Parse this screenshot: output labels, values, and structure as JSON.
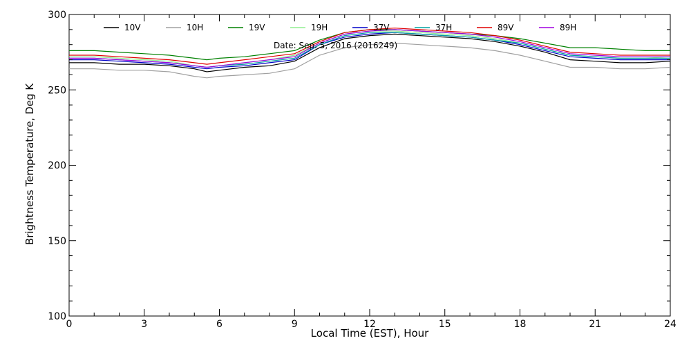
{
  "chart_data": {
    "type": "line",
    "title": "",
    "annotation": "Date: Sep. 5, 2016 (2016249)",
    "xlabel": "Local Time (EST), Hour",
    "ylabel": "Brightness Temperature, Deg K",
    "xlim": [
      0,
      24
    ],
    "ylim": [
      100,
      300
    ],
    "xticks": [
      0,
      3,
      6,
      9,
      12,
      15,
      18,
      21,
      24
    ],
    "yticks": [
      100,
      150,
      200,
      250,
      300
    ],
    "grid": false,
    "legend_position": "top",
    "x": [
      0,
      1,
      2,
      3,
      4,
      5,
      5.5,
      6,
      7,
      8,
      9,
      10,
      11,
      12,
      13,
      14,
      15,
      16,
      17,
      18,
      19,
      20,
      21,
      22,
      23,
      24
    ],
    "series": [
      {
        "name": "10V",
        "color": "#000000",
        "values": [
          268,
          268,
          267,
          267,
          266,
          264,
          262,
          263,
          265,
          266,
          269,
          278,
          284,
          286,
          287,
          286,
          285,
          284,
          282,
          279,
          275,
          270,
          269,
          268,
          268,
          269
        ]
      },
      {
        "name": "10H",
        "color": "#a0a0a0",
        "values": [
          264,
          264,
          263,
          263,
          262,
          259,
          258,
          259,
          260,
          261,
          264,
          273,
          278,
          280,
          281,
          280,
          279,
          278,
          276,
          273,
          269,
          265,
          265,
          264,
          264,
          265
        ]
      },
      {
        "name": "19V",
        "color": "#008000",
        "values": [
          276,
          276,
          275,
          274,
          273,
          271,
          270,
          271,
          272,
          274,
          276,
          283,
          288,
          290,
          290,
          289,
          288,
          287,
          286,
          284,
          281,
          278,
          278,
          277,
          276,
          276
        ]
      },
      {
        "name": "19H",
        "color": "#90ee90",
        "values": [
          272,
          272,
          271,
          270,
          269,
          266,
          265,
          266,
          268,
          270,
          273,
          281,
          287,
          289,
          289,
          288,
          287,
          286,
          284,
          281,
          277,
          273,
          272,
          271,
          271,
          272
        ]
      },
      {
        "name": "37V",
        "color": "#0000c8",
        "values": [
          270,
          270,
          269,
          268,
          267,
          265,
          264,
          265,
          266,
          268,
          270,
          280,
          285,
          287,
          288,
          287,
          286,
          285,
          283,
          280,
          276,
          272,
          271,
          270,
          270,
          270
        ]
      },
      {
        "name": "37H",
        "color": "#00a0a0",
        "values": [
          271,
          271,
          270,
          269,
          268,
          266,
          265,
          266,
          267,
          269,
          271,
          280,
          286,
          288,
          288,
          287,
          286,
          285,
          283,
          281,
          277,
          273,
          272,
          271,
          271,
          271
        ]
      },
      {
        "name": "89V",
        "color": "#e00000",
        "values": [
          273,
          273,
          272,
          271,
          270,
          268,
          267,
          268,
          270,
          272,
          274,
          282,
          288,
          290,
          291,
          290,
          289,
          288,
          286,
          283,
          279,
          275,
          274,
          273,
          273,
          273
        ]
      },
      {
        "name": "89H",
        "color": "#a000e0",
        "values": [
          271,
          271,
          270,
          269,
          268,
          266,
          265,
          266,
          268,
          270,
          272,
          281,
          287,
          289,
          290,
          289,
          288,
          287,
          285,
          282,
          278,
          274,
          273,
          272,
          272,
          272
        ]
      }
    ]
  }
}
